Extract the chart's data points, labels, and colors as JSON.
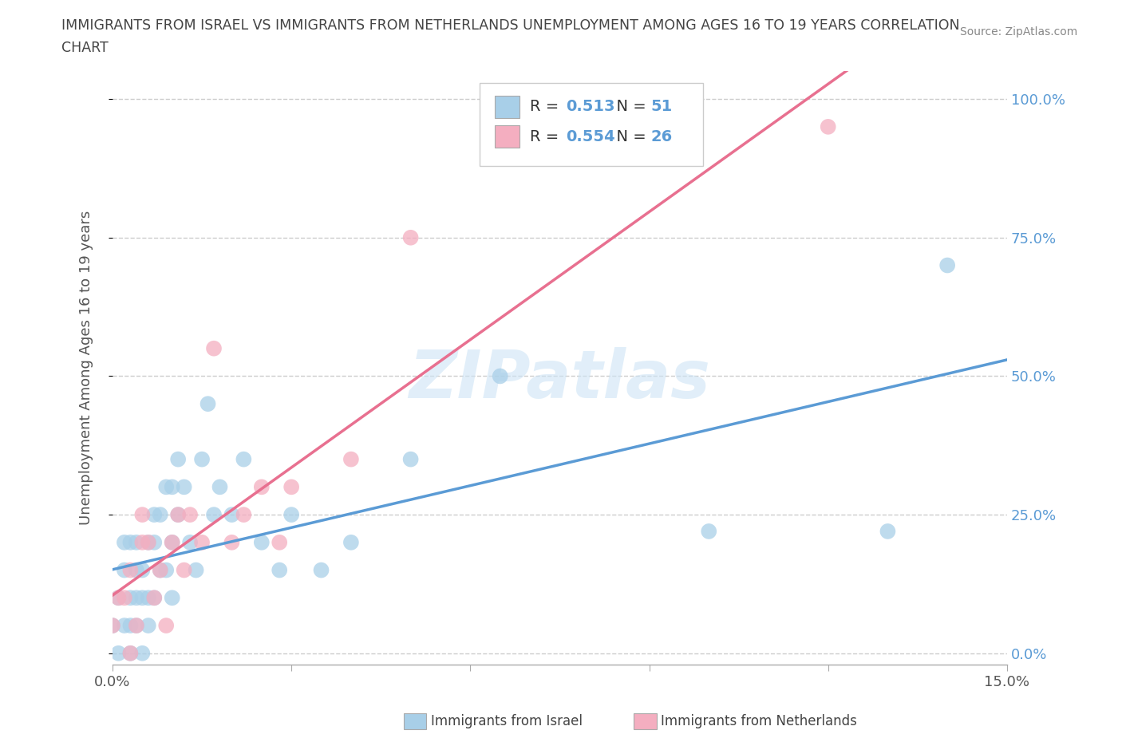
{
  "title_line1": "IMMIGRANTS FROM ISRAEL VS IMMIGRANTS FROM NETHERLANDS UNEMPLOYMENT AMONG AGES 16 TO 19 YEARS CORRELATION",
  "title_line2": "CHART",
  "source_text": "Source: ZipAtlas.com",
  "ylabel": "Unemployment Among Ages 16 to 19 years",
  "xlim": [
    0.0,
    0.15
  ],
  "ylim": [
    -0.02,
    1.05
  ],
  "xticks": [
    0.0,
    0.03,
    0.06,
    0.09,
    0.12,
    0.15
  ],
  "xtick_labels_shown": [
    "0.0%",
    "",
    "",
    "",
    "",
    "15.0%"
  ],
  "ytick_positions": [
    0.0,
    0.25,
    0.5,
    0.75,
    1.0
  ],
  "ytick_labels": [
    "0.0%",
    "25.0%",
    "50.0%",
    "75.0%",
    "100.0%"
  ],
  "R_israel": 0.513,
  "N_israel": 51,
  "R_netherlands": 0.554,
  "N_netherlands": 26,
  "color_israel": "#a8cfe8",
  "color_netherlands": "#f4aec0",
  "line_color_israel": "#5b9bd5",
  "line_color_netherlands": "#e87090",
  "watermark_text": "ZIPatlas",
  "background_color": "#ffffff",
  "grid_color": "#cccccc",
  "israel_scatter_x": [
    0.0,
    0.001,
    0.001,
    0.002,
    0.002,
    0.002,
    0.003,
    0.003,
    0.003,
    0.003,
    0.004,
    0.004,
    0.004,
    0.004,
    0.005,
    0.005,
    0.005,
    0.006,
    0.006,
    0.006,
    0.007,
    0.007,
    0.007,
    0.008,
    0.008,
    0.009,
    0.009,
    0.01,
    0.01,
    0.01,
    0.011,
    0.011,
    0.012,
    0.013,
    0.014,
    0.015,
    0.016,
    0.017,
    0.018,
    0.02,
    0.022,
    0.025,
    0.028,
    0.03,
    0.035,
    0.04,
    0.05,
    0.065,
    0.1,
    0.13,
    0.14
  ],
  "israel_scatter_y": [
    0.05,
    0.0,
    0.1,
    0.05,
    0.15,
    0.2,
    0.0,
    0.05,
    0.1,
    0.2,
    0.05,
    0.1,
    0.15,
    0.2,
    0.0,
    0.1,
    0.15,
    0.05,
    0.1,
    0.2,
    0.1,
    0.2,
    0.25,
    0.15,
    0.25,
    0.15,
    0.3,
    0.1,
    0.2,
    0.3,
    0.25,
    0.35,
    0.3,
    0.2,
    0.15,
    0.35,
    0.45,
    0.25,
    0.3,
    0.25,
    0.35,
    0.2,
    0.15,
    0.25,
    0.15,
    0.2,
    0.35,
    0.5,
    0.22,
    0.22,
    0.7
  ],
  "netherlands_scatter_x": [
    0.0,
    0.001,
    0.002,
    0.003,
    0.003,
    0.004,
    0.005,
    0.005,
    0.006,
    0.007,
    0.008,
    0.009,
    0.01,
    0.011,
    0.012,
    0.013,
    0.015,
    0.017,
    0.02,
    0.022,
    0.025,
    0.028,
    0.03,
    0.04,
    0.05,
    0.12
  ],
  "netherlands_scatter_y": [
    0.05,
    0.1,
    0.1,
    0.0,
    0.15,
    0.05,
    0.2,
    0.25,
    0.2,
    0.1,
    0.15,
    0.05,
    0.2,
    0.25,
    0.15,
    0.25,
    0.2,
    0.55,
    0.2,
    0.25,
    0.3,
    0.2,
    0.3,
    0.35,
    0.75,
    0.95
  ]
}
